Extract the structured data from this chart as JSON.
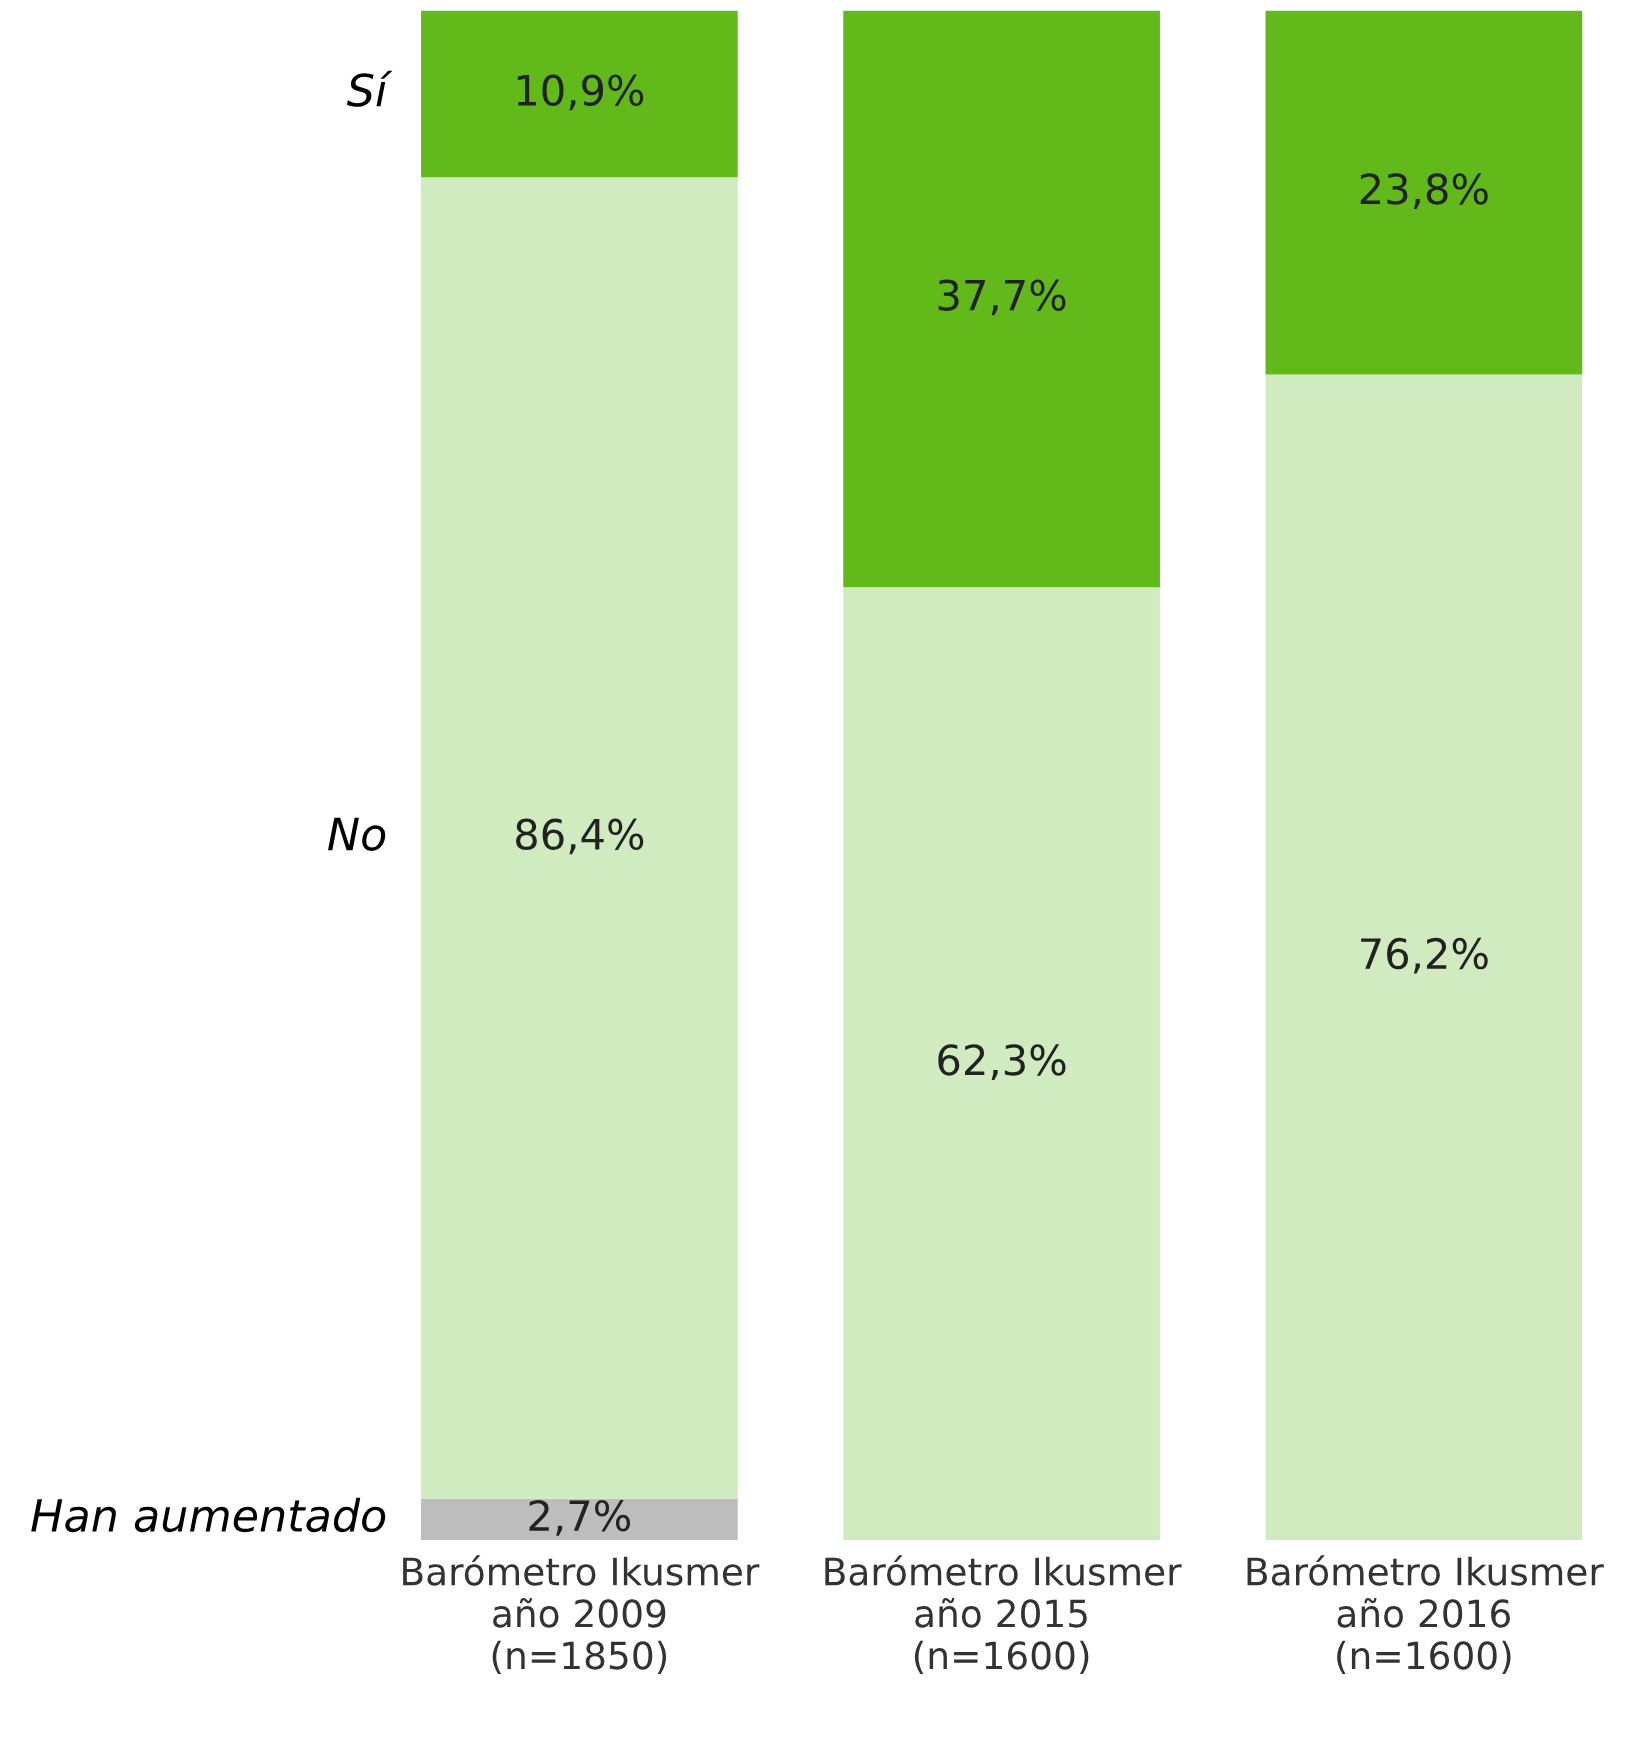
{
  "chart_data": {
    "type": "bar",
    "stacked": true,
    "categories": [
      "Barómetro Ikusmer\naño 2009\n(n=1850)",
      "Barómetro Ikusmer\naño 2015\n(n=1600)",
      "Barómetro Ikusmer\naño 2016\n(n=1600)"
    ],
    "series": [
      {
        "name": "Han aumentado",
        "color": "#bdbdbd",
        "values": [
          2.7,
          null,
          null
        ],
        "value_labels": [
          "2,7%",
          null,
          null
        ]
      },
      {
        "name": "No",
        "color": "#d0ebbf",
        "values": [
          86.4,
          62.3,
          76.2
        ],
        "value_labels": [
          "86,4%",
          "62,3%",
          "76,2%"
        ]
      },
      {
        "name": "Sí",
        "color": "#62b91a",
        "values": [
          10.9,
          37.7,
          23.8
        ],
        "value_labels": [
          "10,9%",
          "37,7%",
          "23,8%"
        ]
      }
    ]
  }
}
